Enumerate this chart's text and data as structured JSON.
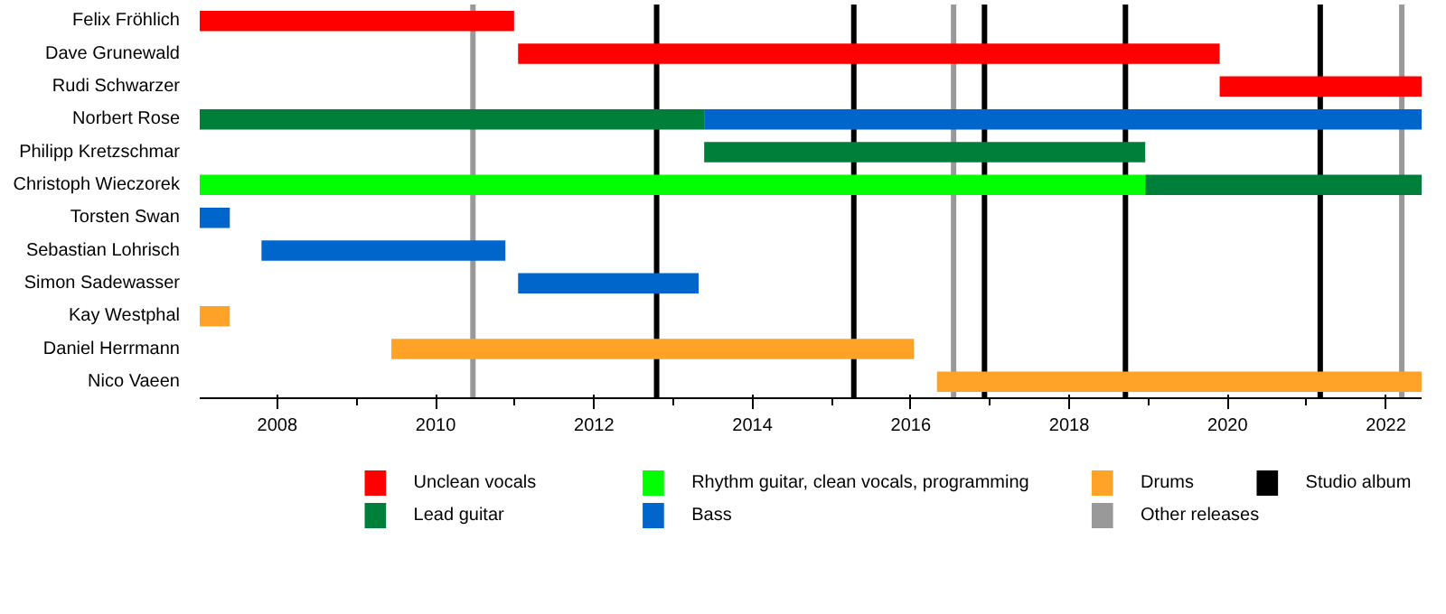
{
  "chart_data": {
    "type": "bar",
    "orientation": "horizontal",
    "categories": [
      "Felix Fröhlich",
      "Dave Grunewald",
      "Rudi Schwarzer",
      "Norbert Rose",
      "Philipp Kretzschmar",
      "Christoph Wieczorek",
      "Torsten Swan",
      "Sebastian Lohrisch",
      "Simon Sadewasser",
      "Kay Westphal",
      "Daniel Herrmann",
      "Nico Vaeen"
    ],
    "series": [
      {
        "name": "Unclean vocals",
        "color": "#ff0000",
        "base": [
          2007.02,
          2011.04,
          2019.9,
          null,
          null,
          null,
          null,
          null,
          null,
          null,
          null,
          null
        ],
        "values": [
          3.97,
          8.86,
          2.55,
          null,
          null,
          null,
          null,
          null,
          null,
          null,
          null,
          null
        ]
      },
      {
        "name": "Lead guitar",
        "color": "#007f3a",
        "base": [
          null,
          null,
          null,
          2007.02,
          2013.39,
          2018.96,
          null,
          null,
          null,
          null,
          null,
          null
        ],
        "values": [
          null,
          null,
          null,
          6.37,
          5.57,
          3.49,
          null,
          null,
          null,
          null,
          null,
          null
        ]
      },
      {
        "name": "Rhythm guitar, clean vocals, programming",
        "color": "#00ff00",
        "base": [
          null,
          null,
          null,
          null,
          null,
          2007.02,
          null,
          null,
          null,
          null,
          null,
          null
        ],
        "values": [
          null,
          null,
          null,
          null,
          null,
          11.94,
          null,
          null,
          null,
          null,
          null,
          null
        ]
      },
      {
        "name": "Bass",
        "color": "#0066cc",
        "base": [
          null,
          null,
          null,
          2013.39,
          null,
          null,
          2007.02,
          2007.8,
          2011.04,
          null,
          null,
          null
        ],
        "values": [
          null,
          null,
          null,
          9.06,
          null,
          null,
          0.38,
          3.08,
          2.28,
          null,
          null,
          null
        ]
      },
      {
        "name": "Drums",
        "color": "#ffa228",
        "base": [
          null,
          null,
          null,
          null,
          null,
          null,
          null,
          null,
          null,
          2007.02,
          2009.44,
          2016.33
        ],
        "values": [
          null,
          null,
          null,
          null,
          null,
          null,
          null,
          null,
          null,
          0.38,
          6.6,
          6.12
        ]
      }
    ],
    "ref_lines": [
      {
        "axis": "x",
        "value": 2010.47,
        "label": "Other releases",
        "color": "#999999"
      },
      {
        "axis": "x",
        "value": 2012.79,
        "label": "Studio album",
        "color": "#000000"
      },
      {
        "axis": "x",
        "value": 2015.28,
        "color": "#000000"
      },
      {
        "axis": "x",
        "value": 2016.54,
        "color": "#999999"
      },
      {
        "axis": "x",
        "value": 2016.93,
        "color": "#000000"
      },
      {
        "axis": "x",
        "value": 2018.71,
        "color": "#000000"
      },
      {
        "axis": "x",
        "value": 2021.17,
        "color": "#000000"
      },
      {
        "axis": "x",
        "value": 2022.2,
        "color": "#999999"
      }
    ],
    "xlim": [
      2007.02,
      2022.45
    ],
    "xticks": [
      2008,
      {
        "value": 2009,
        "label": null
      },
      2010,
      {
        "value": 2011,
        "label": null
      },
      2012,
      {
        "value": 2013,
        "label": null
      },
      2014,
      {
        "value": 2015,
        "label": null
      },
      2016,
      {
        "value": 2017,
        "label": null
      },
      2018,
      {
        "value": 2019,
        "label": null
      },
      2020,
      {
        "value": 2021,
        "label": null
      },
      2022
    ],
    "grid": false,
    "legend": "bottom"
  }
}
